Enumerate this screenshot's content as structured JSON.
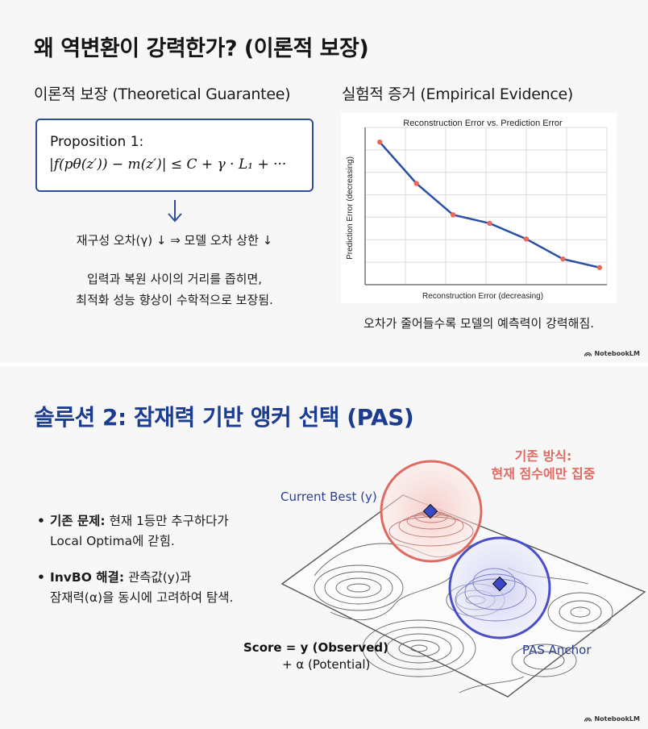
{
  "slide1": {
    "title": "왜 역변환이 강력한가? (이론적 보장)",
    "left_heading": "이론적 보장 (Theoretical Guarantee)",
    "right_heading": "실험적 증거 (Empirical Evidence)",
    "proposition_title": "Proposition 1:",
    "proposition_formula": "|f(pθ(z′)) − m(z′)| ≤ C + γ · L₁ + ···",
    "recon_line": "재구성 오차(γ) ↓ ⇒ 모델 오차 상한 ↓",
    "explain_line1": "입력과 복원 사이의 거리를 좁히면,",
    "explain_line2": "최적화 성능 향상이 수학적으로 보장됨.",
    "chart_caption": "오차가 줄어들수록 모델의 예측력이 강력해짐.",
    "badge": "NotebookLM"
  },
  "chart_data": {
    "type": "line",
    "title": "Reconstruction Error vs. Prediction Error",
    "xlabel": "Reconstruction Error (decreasing)",
    "ylabel": "Prediction Error (decreasing)",
    "x": [
      1,
      2,
      3,
      4,
      5,
      6,
      7
    ],
    "y": [
      100,
      71,
      49,
      43,
      32,
      18,
      12
    ],
    "grid": true,
    "line_color": "#2d4fa3",
    "marker_color": "#e86a5c"
  },
  "slide2": {
    "title": "솔루션 2: 잠재력 기반 앵커 선택 (PAS)",
    "bullet1_bold": "기존 문제:",
    "bullet1_rest": " 현재 1등만 추구하다가",
    "bullet1_line2": "Local Optima에 갇힘.",
    "bullet2_bold": "InvBO 해결:",
    "bullet2_rest": " 관측값(y)과",
    "bullet2_line2": "잠재력(α)을 동시에 고려하여 탐색.",
    "label_current": "Current Best (y)",
    "label_pas": "PAS Anchor",
    "label_existing_line1": "기존 방식:",
    "label_existing_line2": "현재 점수에만 집중",
    "score_line1": "Score = y (Observed)",
    "score_line2": "+ α (Potential)",
    "badge": "NotebookLM",
    "colors": {
      "title": "#1c3d8f",
      "red_circle": "#e06a60",
      "blue_circle": "#4a4fc9"
    }
  }
}
